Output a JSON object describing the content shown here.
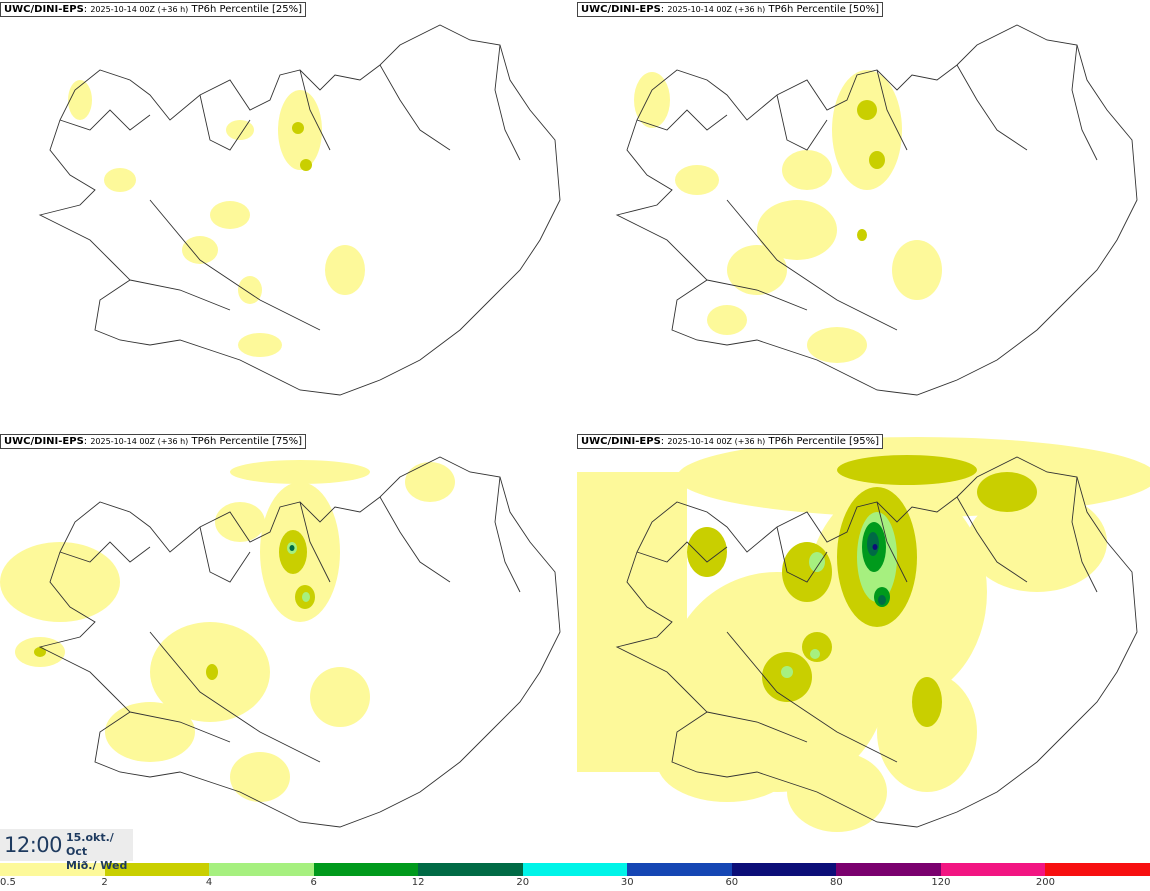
{
  "panels": [
    {
      "model": "UWC/DINI-EPS",
      "run": "2025-10-14 00Z (+36 h)",
      "field": "TP6h Percentile [25%]"
    },
    {
      "model": "UWC/DINI-EPS",
      "run": "2025-10-14 00Z (+36 h)",
      "field": "TP6h Percentile [50%]"
    },
    {
      "model": "UWC/DINI-EPS",
      "run": "2025-10-14 00Z (+36 h)",
      "field": "TP6h Percentile [75%]"
    },
    {
      "model": "UWC/DINI-EPS",
      "run": "2025-10-14 00Z (+36 h)",
      "field": "TP6h Percentile [95%]"
    }
  ],
  "valid_time": {
    "clock": "12:00",
    "date_line1": "15.okt./ Oct",
    "date_line2": "Mið./ Wed"
  },
  "legend": {
    "colors": [
      "#fdf99a",
      "#c9cf00",
      "#a6f07f",
      "#009a1c",
      "#006a45",
      "#00f4e8",
      "#1546b4",
      "#0c0e78",
      "#7a006e",
      "#f21582",
      "#f70f10"
    ],
    "labels": [
      "0.5",
      "2",
      "4",
      "6",
      "12",
      "20",
      "30",
      "60",
      "80",
      "120",
      "200"
    ]
  }
}
